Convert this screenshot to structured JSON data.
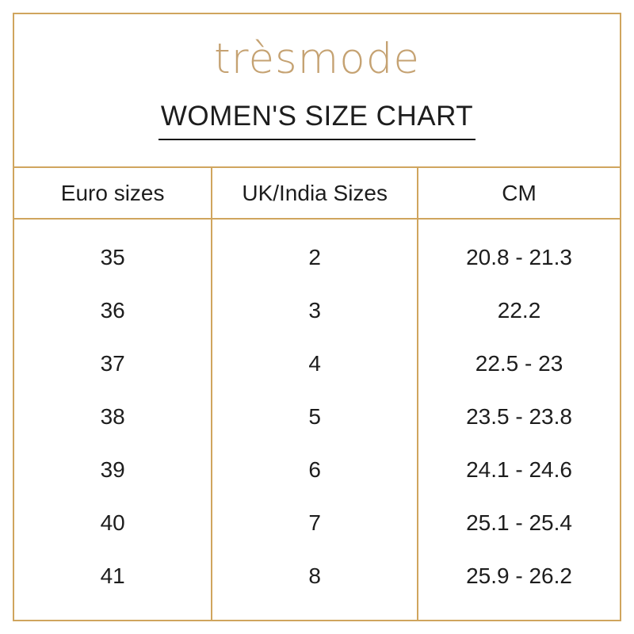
{
  "colors": {
    "gold_border": "#d0a55e",
    "logo_gold": "#c5a272",
    "text": "#1d1d1d",
    "background": "#ffffff"
  },
  "brand": {
    "logo_text": "trèsmode"
  },
  "header": {
    "title": "WOMEN'S SIZE CHART"
  },
  "chart_data": {
    "type": "table",
    "title": "WOMEN'S SIZE CHART",
    "columns": [
      "Euro sizes",
      "UK/India Sizes",
      "CM"
    ],
    "rows": [
      {
        "euro": "35",
        "uk": "2",
        "cm": "20.8 - 21.3"
      },
      {
        "euro": "36",
        "uk": "3",
        "cm": "22.2"
      },
      {
        "euro": "37",
        "uk": "4",
        "cm": "22.5 - 23"
      },
      {
        "euro": "38",
        "uk": "5",
        "cm": "23.5 - 23.8"
      },
      {
        "euro": "39",
        "uk": "6",
        "cm": "24.1 - 24.6"
      },
      {
        "euro": "40",
        "uk": "7",
        "cm": "25.1 - 25.4"
      },
      {
        "euro": "41",
        "uk": "8",
        "cm": "25.9 - 26.2"
      }
    ]
  }
}
